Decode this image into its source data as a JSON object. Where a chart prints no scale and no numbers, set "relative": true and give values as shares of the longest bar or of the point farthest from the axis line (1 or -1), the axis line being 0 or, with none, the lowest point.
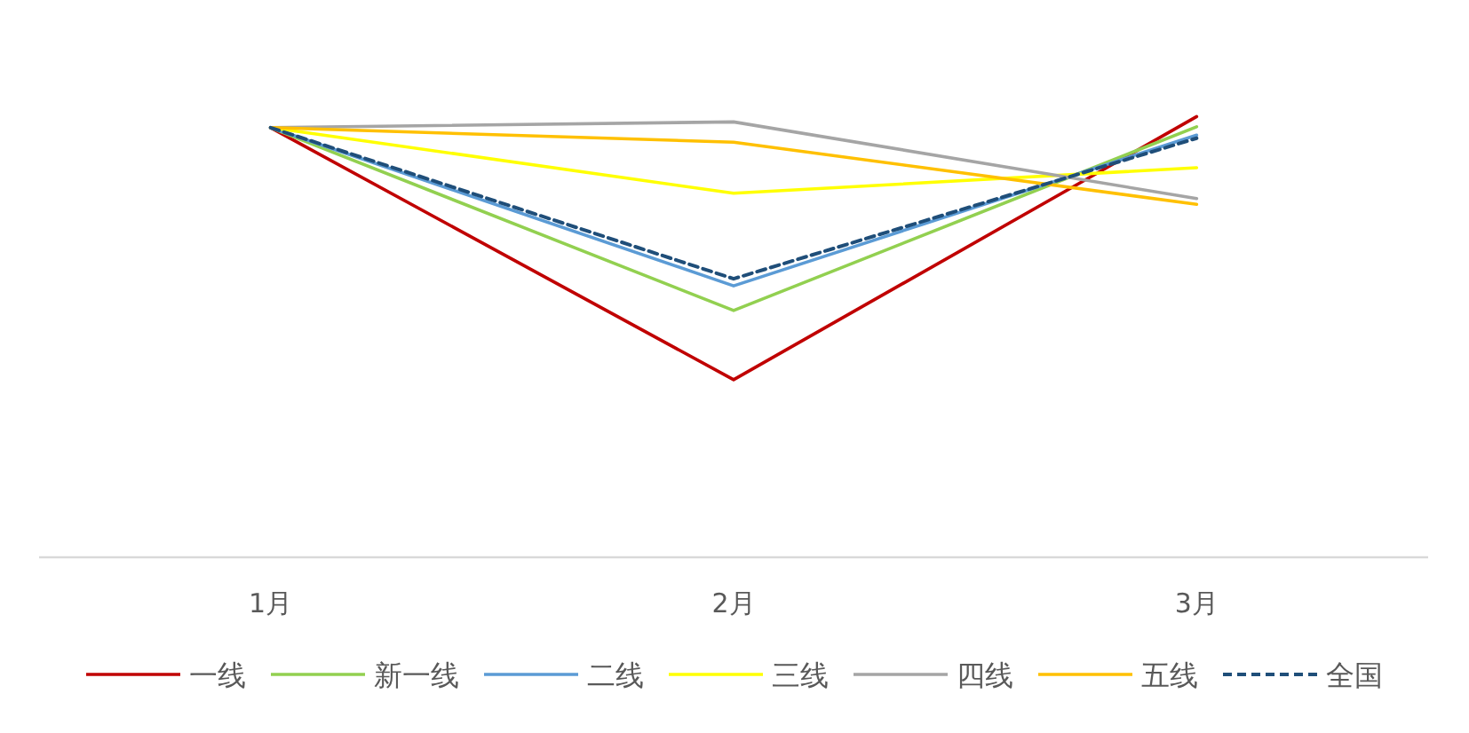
{
  "chart_data": {
    "type": "line",
    "relative": true,
    "legend": "bottom",
    "grid": false,
    "marker": "none",
    "categories": [
      "1月",
      "2月",
      "3月"
    ],
    "series": [
      {
        "name": "一线",
        "color": "#c00000",
        "values": [
          0.975,
          0.403,
          1
        ]
      },
      {
        "name": "新一线",
        "color": "#92d050",
        "values": [
          0.975,
          0.56,
          0.977
        ]
      },
      {
        "name": "二线",
        "color": "#5b9bd5",
        "values": [
          0.975,
          0.616,
          0.958
        ]
      },
      {
        "name": "三线",
        "color": "#ffff00",
        "values": [
          0.975,
          0.826,
          0.884
        ]
      },
      {
        "name": "四线",
        "color": "#a5a5a5",
        "values": [
          0.975,
          0.988,
          0.814
        ]
      },
      {
        "name": "五线",
        "color": "#ffc000",
        "values": [
          0.975,
          0.942,
          0.801
        ]
      },
      {
        "name": "全国",
        "color": "#1f4e79",
        "line_style": "dashed",
        "values": [
          0.975,
          0.632,
          0.951
        ]
      }
    ]
  }
}
